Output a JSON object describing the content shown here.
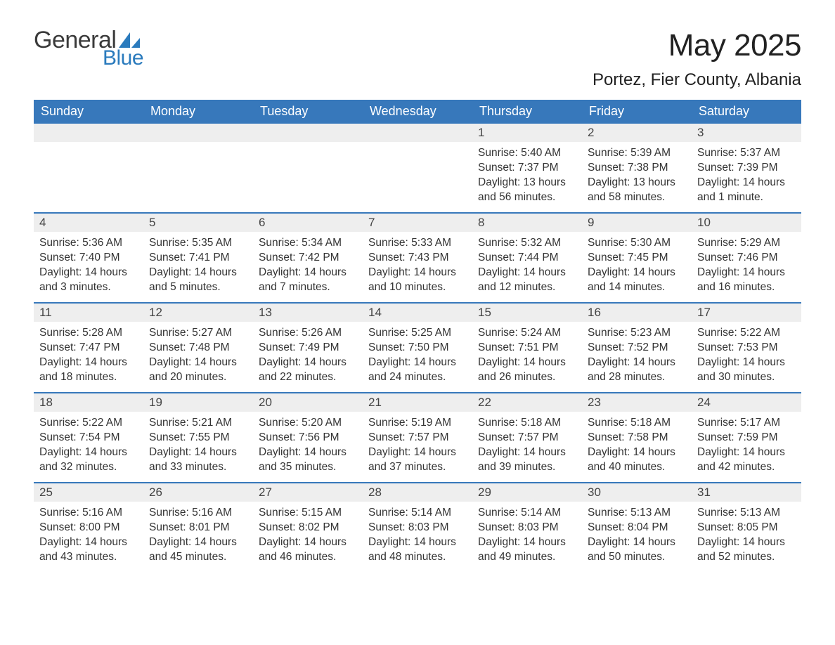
{
  "brand": {
    "text1": "General",
    "text2": "Blue",
    "icon_color": "#2b7bbd"
  },
  "title": "May 2025",
  "location": "Portez, Fier County, Albania",
  "colors": {
    "header_bg": "#3778bb",
    "header_text": "#ffffff",
    "daynum_bg": "#eeeeee",
    "divider": "#3778bb",
    "body_text": "#333333",
    "page_bg": "#ffffff"
  },
  "typography": {
    "title_fontsize": 44,
    "location_fontsize": 24,
    "header_fontsize": 18,
    "body_fontsize": 15.5
  },
  "day_headers": [
    "Sunday",
    "Monday",
    "Tuesday",
    "Wednesday",
    "Thursday",
    "Friday",
    "Saturday"
  ],
  "weeks": [
    [
      {
        "empty": true
      },
      {
        "empty": true
      },
      {
        "empty": true
      },
      {
        "empty": true
      },
      {
        "day": "1",
        "sunrise": "Sunrise: 5:40 AM",
        "sunset": "Sunset: 7:37 PM",
        "daylight": "Daylight: 13 hours and 56 minutes."
      },
      {
        "day": "2",
        "sunrise": "Sunrise: 5:39 AM",
        "sunset": "Sunset: 7:38 PM",
        "daylight": "Daylight: 13 hours and 58 minutes."
      },
      {
        "day": "3",
        "sunrise": "Sunrise: 5:37 AM",
        "sunset": "Sunset: 7:39 PM",
        "daylight": "Daylight: 14 hours and 1 minute."
      }
    ],
    [
      {
        "day": "4",
        "sunrise": "Sunrise: 5:36 AM",
        "sunset": "Sunset: 7:40 PM",
        "daylight": "Daylight: 14 hours and 3 minutes."
      },
      {
        "day": "5",
        "sunrise": "Sunrise: 5:35 AM",
        "sunset": "Sunset: 7:41 PM",
        "daylight": "Daylight: 14 hours and 5 minutes."
      },
      {
        "day": "6",
        "sunrise": "Sunrise: 5:34 AM",
        "sunset": "Sunset: 7:42 PM",
        "daylight": "Daylight: 14 hours and 7 minutes."
      },
      {
        "day": "7",
        "sunrise": "Sunrise: 5:33 AM",
        "sunset": "Sunset: 7:43 PM",
        "daylight": "Daylight: 14 hours and 10 minutes."
      },
      {
        "day": "8",
        "sunrise": "Sunrise: 5:32 AM",
        "sunset": "Sunset: 7:44 PM",
        "daylight": "Daylight: 14 hours and 12 minutes."
      },
      {
        "day": "9",
        "sunrise": "Sunrise: 5:30 AM",
        "sunset": "Sunset: 7:45 PM",
        "daylight": "Daylight: 14 hours and 14 minutes."
      },
      {
        "day": "10",
        "sunrise": "Sunrise: 5:29 AM",
        "sunset": "Sunset: 7:46 PM",
        "daylight": "Daylight: 14 hours and 16 minutes."
      }
    ],
    [
      {
        "day": "11",
        "sunrise": "Sunrise: 5:28 AM",
        "sunset": "Sunset: 7:47 PM",
        "daylight": "Daylight: 14 hours and 18 minutes."
      },
      {
        "day": "12",
        "sunrise": "Sunrise: 5:27 AM",
        "sunset": "Sunset: 7:48 PM",
        "daylight": "Daylight: 14 hours and 20 minutes."
      },
      {
        "day": "13",
        "sunrise": "Sunrise: 5:26 AM",
        "sunset": "Sunset: 7:49 PM",
        "daylight": "Daylight: 14 hours and 22 minutes."
      },
      {
        "day": "14",
        "sunrise": "Sunrise: 5:25 AM",
        "sunset": "Sunset: 7:50 PM",
        "daylight": "Daylight: 14 hours and 24 minutes."
      },
      {
        "day": "15",
        "sunrise": "Sunrise: 5:24 AM",
        "sunset": "Sunset: 7:51 PM",
        "daylight": "Daylight: 14 hours and 26 minutes."
      },
      {
        "day": "16",
        "sunrise": "Sunrise: 5:23 AM",
        "sunset": "Sunset: 7:52 PM",
        "daylight": "Daylight: 14 hours and 28 minutes."
      },
      {
        "day": "17",
        "sunrise": "Sunrise: 5:22 AM",
        "sunset": "Sunset: 7:53 PM",
        "daylight": "Daylight: 14 hours and 30 minutes."
      }
    ],
    [
      {
        "day": "18",
        "sunrise": "Sunrise: 5:22 AM",
        "sunset": "Sunset: 7:54 PM",
        "daylight": "Daylight: 14 hours and 32 minutes."
      },
      {
        "day": "19",
        "sunrise": "Sunrise: 5:21 AM",
        "sunset": "Sunset: 7:55 PM",
        "daylight": "Daylight: 14 hours and 33 minutes."
      },
      {
        "day": "20",
        "sunrise": "Sunrise: 5:20 AM",
        "sunset": "Sunset: 7:56 PM",
        "daylight": "Daylight: 14 hours and 35 minutes."
      },
      {
        "day": "21",
        "sunrise": "Sunrise: 5:19 AM",
        "sunset": "Sunset: 7:57 PM",
        "daylight": "Daylight: 14 hours and 37 minutes."
      },
      {
        "day": "22",
        "sunrise": "Sunrise: 5:18 AM",
        "sunset": "Sunset: 7:57 PM",
        "daylight": "Daylight: 14 hours and 39 minutes."
      },
      {
        "day": "23",
        "sunrise": "Sunrise: 5:18 AM",
        "sunset": "Sunset: 7:58 PM",
        "daylight": "Daylight: 14 hours and 40 minutes."
      },
      {
        "day": "24",
        "sunrise": "Sunrise: 5:17 AM",
        "sunset": "Sunset: 7:59 PM",
        "daylight": "Daylight: 14 hours and 42 minutes."
      }
    ],
    [
      {
        "day": "25",
        "sunrise": "Sunrise: 5:16 AM",
        "sunset": "Sunset: 8:00 PM",
        "daylight": "Daylight: 14 hours and 43 minutes."
      },
      {
        "day": "26",
        "sunrise": "Sunrise: 5:16 AM",
        "sunset": "Sunset: 8:01 PM",
        "daylight": "Daylight: 14 hours and 45 minutes."
      },
      {
        "day": "27",
        "sunrise": "Sunrise: 5:15 AM",
        "sunset": "Sunset: 8:02 PM",
        "daylight": "Daylight: 14 hours and 46 minutes."
      },
      {
        "day": "28",
        "sunrise": "Sunrise: 5:14 AM",
        "sunset": "Sunset: 8:03 PM",
        "daylight": "Daylight: 14 hours and 48 minutes."
      },
      {
        "day": "29",
        "sunrise": "Sunrise: 5:14 AM",
        "sunset": "Sunset: 8:03 PM",
        "daylight": "Daylight: 14 hours and 49 minutes."
      },
      {
        "day": "30",
        "sunrise": "Sunrise: 5:13 AM",
        "sunset": "Sunset: 8:04 PM",
        "daylight": "Daylight: 14 hours and 50 minutes."
      },
      {
        "day": "31",
        "sunrise": "Sunrise: 5:13 AM",
        "sunset": "Sunset: 8:05 PM",
        "daylight": "Daylight: 14 hours and 52 minutes."
      }
    ]
  ]
}
